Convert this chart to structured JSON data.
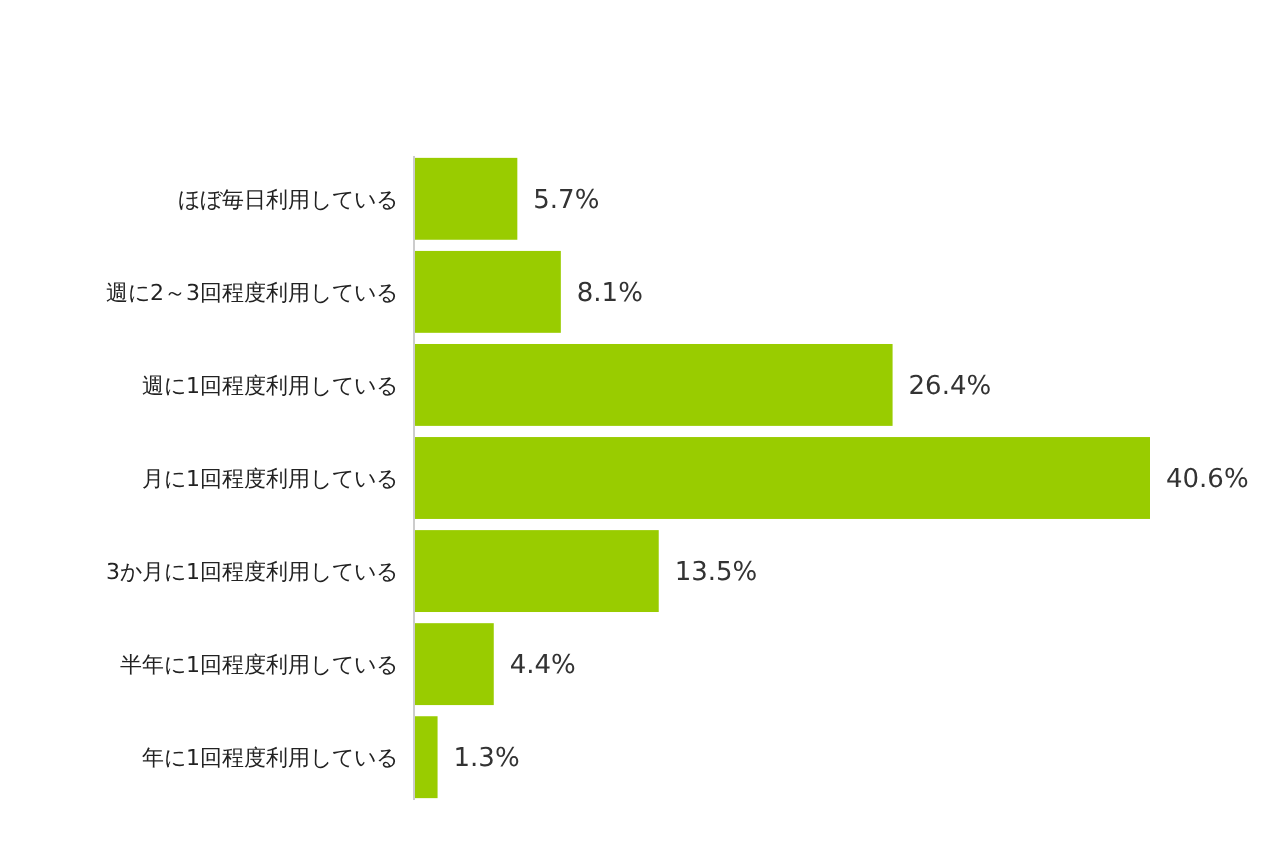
{
  "chart_data": {
    "type": "bar",
    "orientation": "horizontal",
    "categories": [
      "ほぼ毎日利用している",
      "週に2～3回程度利用している",
      "週に1回程度利用している",
      "月に1回程度利用している",
      "3か月に1回程度利用している",
      "半年に1回程度利用している",
      "年に1回程度利用している"
    ],
    "values": [
      5.7,
      8.1,
      26.4,
      40.6,
      13.5,
      4.4,
      1.3
    ],
    "value_labels": [
      "5.7%",
      "8.1%",
      "26.4%",
      "40.6%",
      "13.5%",
      "4.4%",
      "1.3%"
    ],
    "color": "#99cc00"
  }
}
